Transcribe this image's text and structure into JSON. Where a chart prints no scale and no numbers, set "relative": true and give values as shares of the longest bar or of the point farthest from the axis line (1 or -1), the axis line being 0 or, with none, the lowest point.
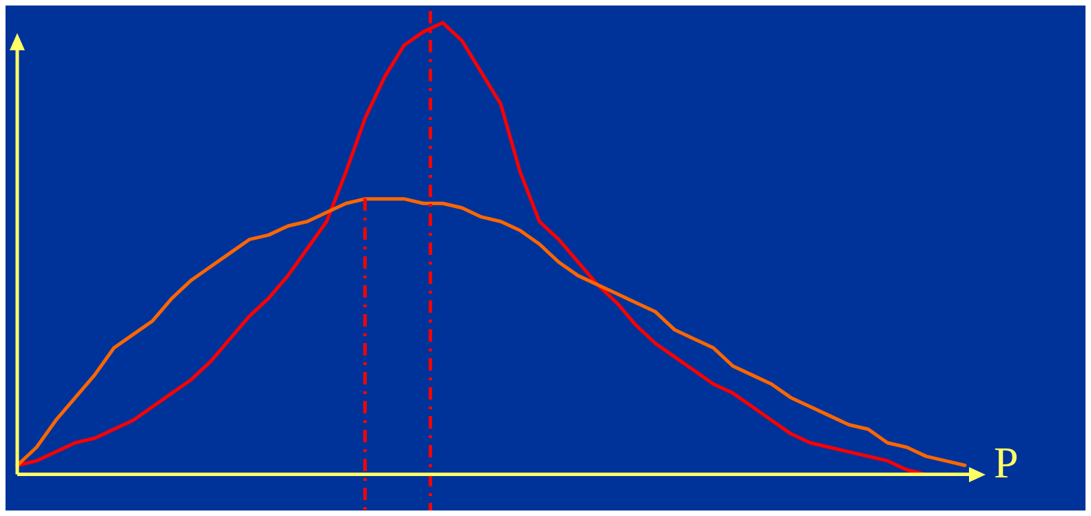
{
  "chart_data": {
    "type": "line",
    "xlabel": "P",
    "relative": true,
    "legend": false,
    "marker": "none",
    "line_style": "solid",
    "categories": [
      null,
      null,
      null,
      null,
      null,
      null,
      null,
      null,
      null,
      null,
      null,
      null,
      null,
      null,
      null,
      null,
      null,
      null,
      null,
      null,
      null,
      null,
      null,
      null,
      null,
      null,
      null,
      null,
      null,
      null,
      null,
      null,
      null,
      null,
      null,
      null,
      null,
      null,
      null,
      null,
      null,
      null,
      null,
      null,
      null,
      null,
      null,
      null,
      null,
      null
    ],
    "series": [
      {
        "color": "#ff6600",
        "values": [
          0.02,
          0.06,
          0.12,
          0.17,
          0.22,
          0.28,
          0.31,
          0.34,
          0.39,
          0.43,
          0.46,
          0.49,
          0.52,
          0.53,
          0.55,
          0.56,
          0.58,
          0.6,
          0.61,
          0.61,
          0.61,
          0.6,
          0.6,
          0.59,
          0.57,
          0.56,
          0.54,
          0.51,
          0.47,
          0.44,
          0.42,
          0.4,
          0.38,
          0.36,
          0.32,
          0.3,
          0.28,
          0.24,
          0.22,
          0.2,
          0.17,
          0.15,
          0.13,
          0.11,
          0.1,
          0.07,
          0.06,
          0.04,
          0.03,
          0.02
        ]
      },
      {
        "color": "#ff0000",
        "values": [
          0.02,
          0.03,
          0.05,
          0.07,
          0.08,
          0.1,
          0.12,
          0.15,
          0.18,
          0.21,
          0.25,
          0.3,
          0.35,
          0.39,
          0.44,
          0.5,
          0.56,
          0.67,
          0.79,
          0.88,
          0.95,
          0.98,
          1.0,
          0.96,
          0.89,
          0.82,
          0.67,
          0.56,
          0.52,
          0.47,
          0.42,
          0.38,
          0.33,
          0.29,
          0.26,
          0.23,
          0.2,
          0.18,
          0.15,
          0.12,
          0.09,
          0.07,
          0.06,
          0.05,
          0.04,
          0.03,
          0.01,
          0.0,
          0.0,
          0.0
        ]
      }
    ]
  }
}
